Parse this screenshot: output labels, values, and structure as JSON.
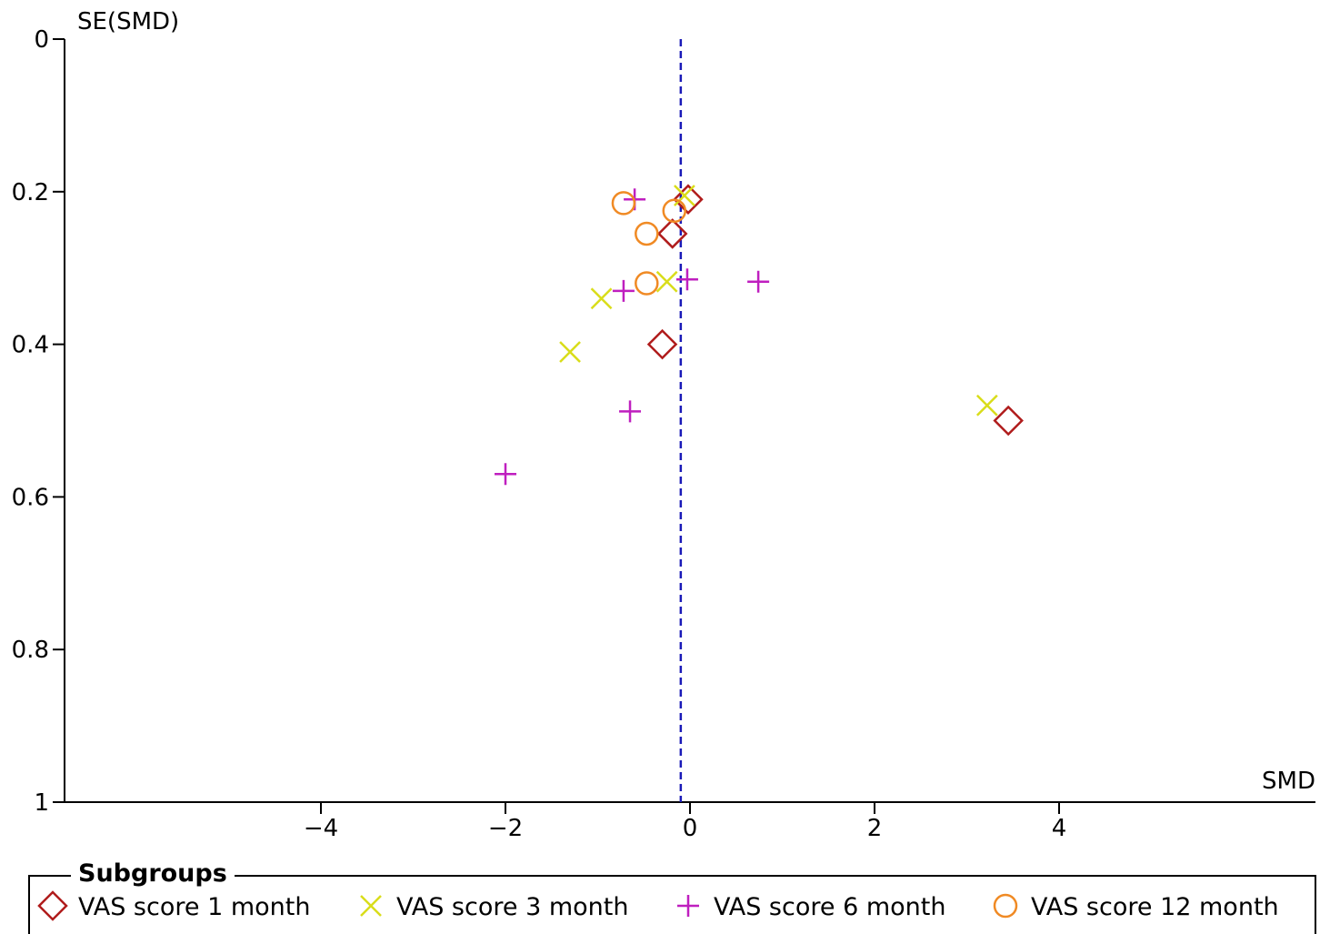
{
  "chart_data": {
    "type": "scatter",
    "subtype": "funnel-plot",
    "xlabel": "SMD",
    "ylabel": "SE(SMD)",
    "xlim": [
      -6.8,
      6.8
    ],
    "ylim": [
      0,
      1
    ],
    "y_inverted": true,
    "xticks": [
      -4,
      -2,
      0,
      2,
      4
    ],
    "xtick_labels": [
      "−4",
      "−2",
      "0",
      "2",
      "4"
    ],
    "yticks": [
      0,
      0.2,
      0.4,
      0.6,
      0.8,
      1
    ],
    "ytick_labels": [
      "0",
      "0.2",
      "0.4",
      "0.6",
      "0.8",
      "1"
    ],
    "reference_line": {
      "x": -0.1,
      "style": "dashed",
      "color": "#1a1ab8"
    },
    "grid": false,
    "legend": {
      "title": "Subgroups",
      "placement": "bottom"
    },
    "series": [
      {
        "name": "VAS score 1 month",
        "marker": "diamond",
        "color": "#b01c1c",
        "points": [
          [
            -0.02,
            0.21
          ],
          [
            -0.19,
            0.255
          ],
          [
            -0.3,
            0.4
          ],
          [
            3.45,
            0.5
          ]
        ]
      },
      {
        "name": "VAS score 3 month",
        "marker": "x",
        "color": "#d9dd1a",
        "points": [
          [
            -0.06,
            0.205
          ],
          [
            -0.25,
            0.318
          ],
          [
            -0.96,
            0.34
          ],
          [
            -1.3,
            0.41
          ],
          [
            3.22,
            0.48
          ]
        ]
      },
      {
        "name": "VAS score 6 month",
        "marker": "plus",
        "color": "#bf1fbf",
        "points": [
          [
            -0.6,
            0.21
          ],
          [
            -0.72,
            0.33
          ],
          [
            -0.03,
            0.315
          ],
          [
            0.74,
            0.318
          ],
          [
            -0.65,
            0.488
          ],
          [
            -2.0,
            0.57
          ]
        ]
      },
      {
        "name": "VAS score 12 month",
        "marker": "circle",
        "color": "#f08a24",
        "points": [
          [
            -0.72,
            0.215
          ],
          [
            -0.17,
            0.225
          ],
          [
            -0.47,
            0.255
          ],
          [
            -0.47,
            0.32
          ]
        ]
      }
    ]
  }
}
